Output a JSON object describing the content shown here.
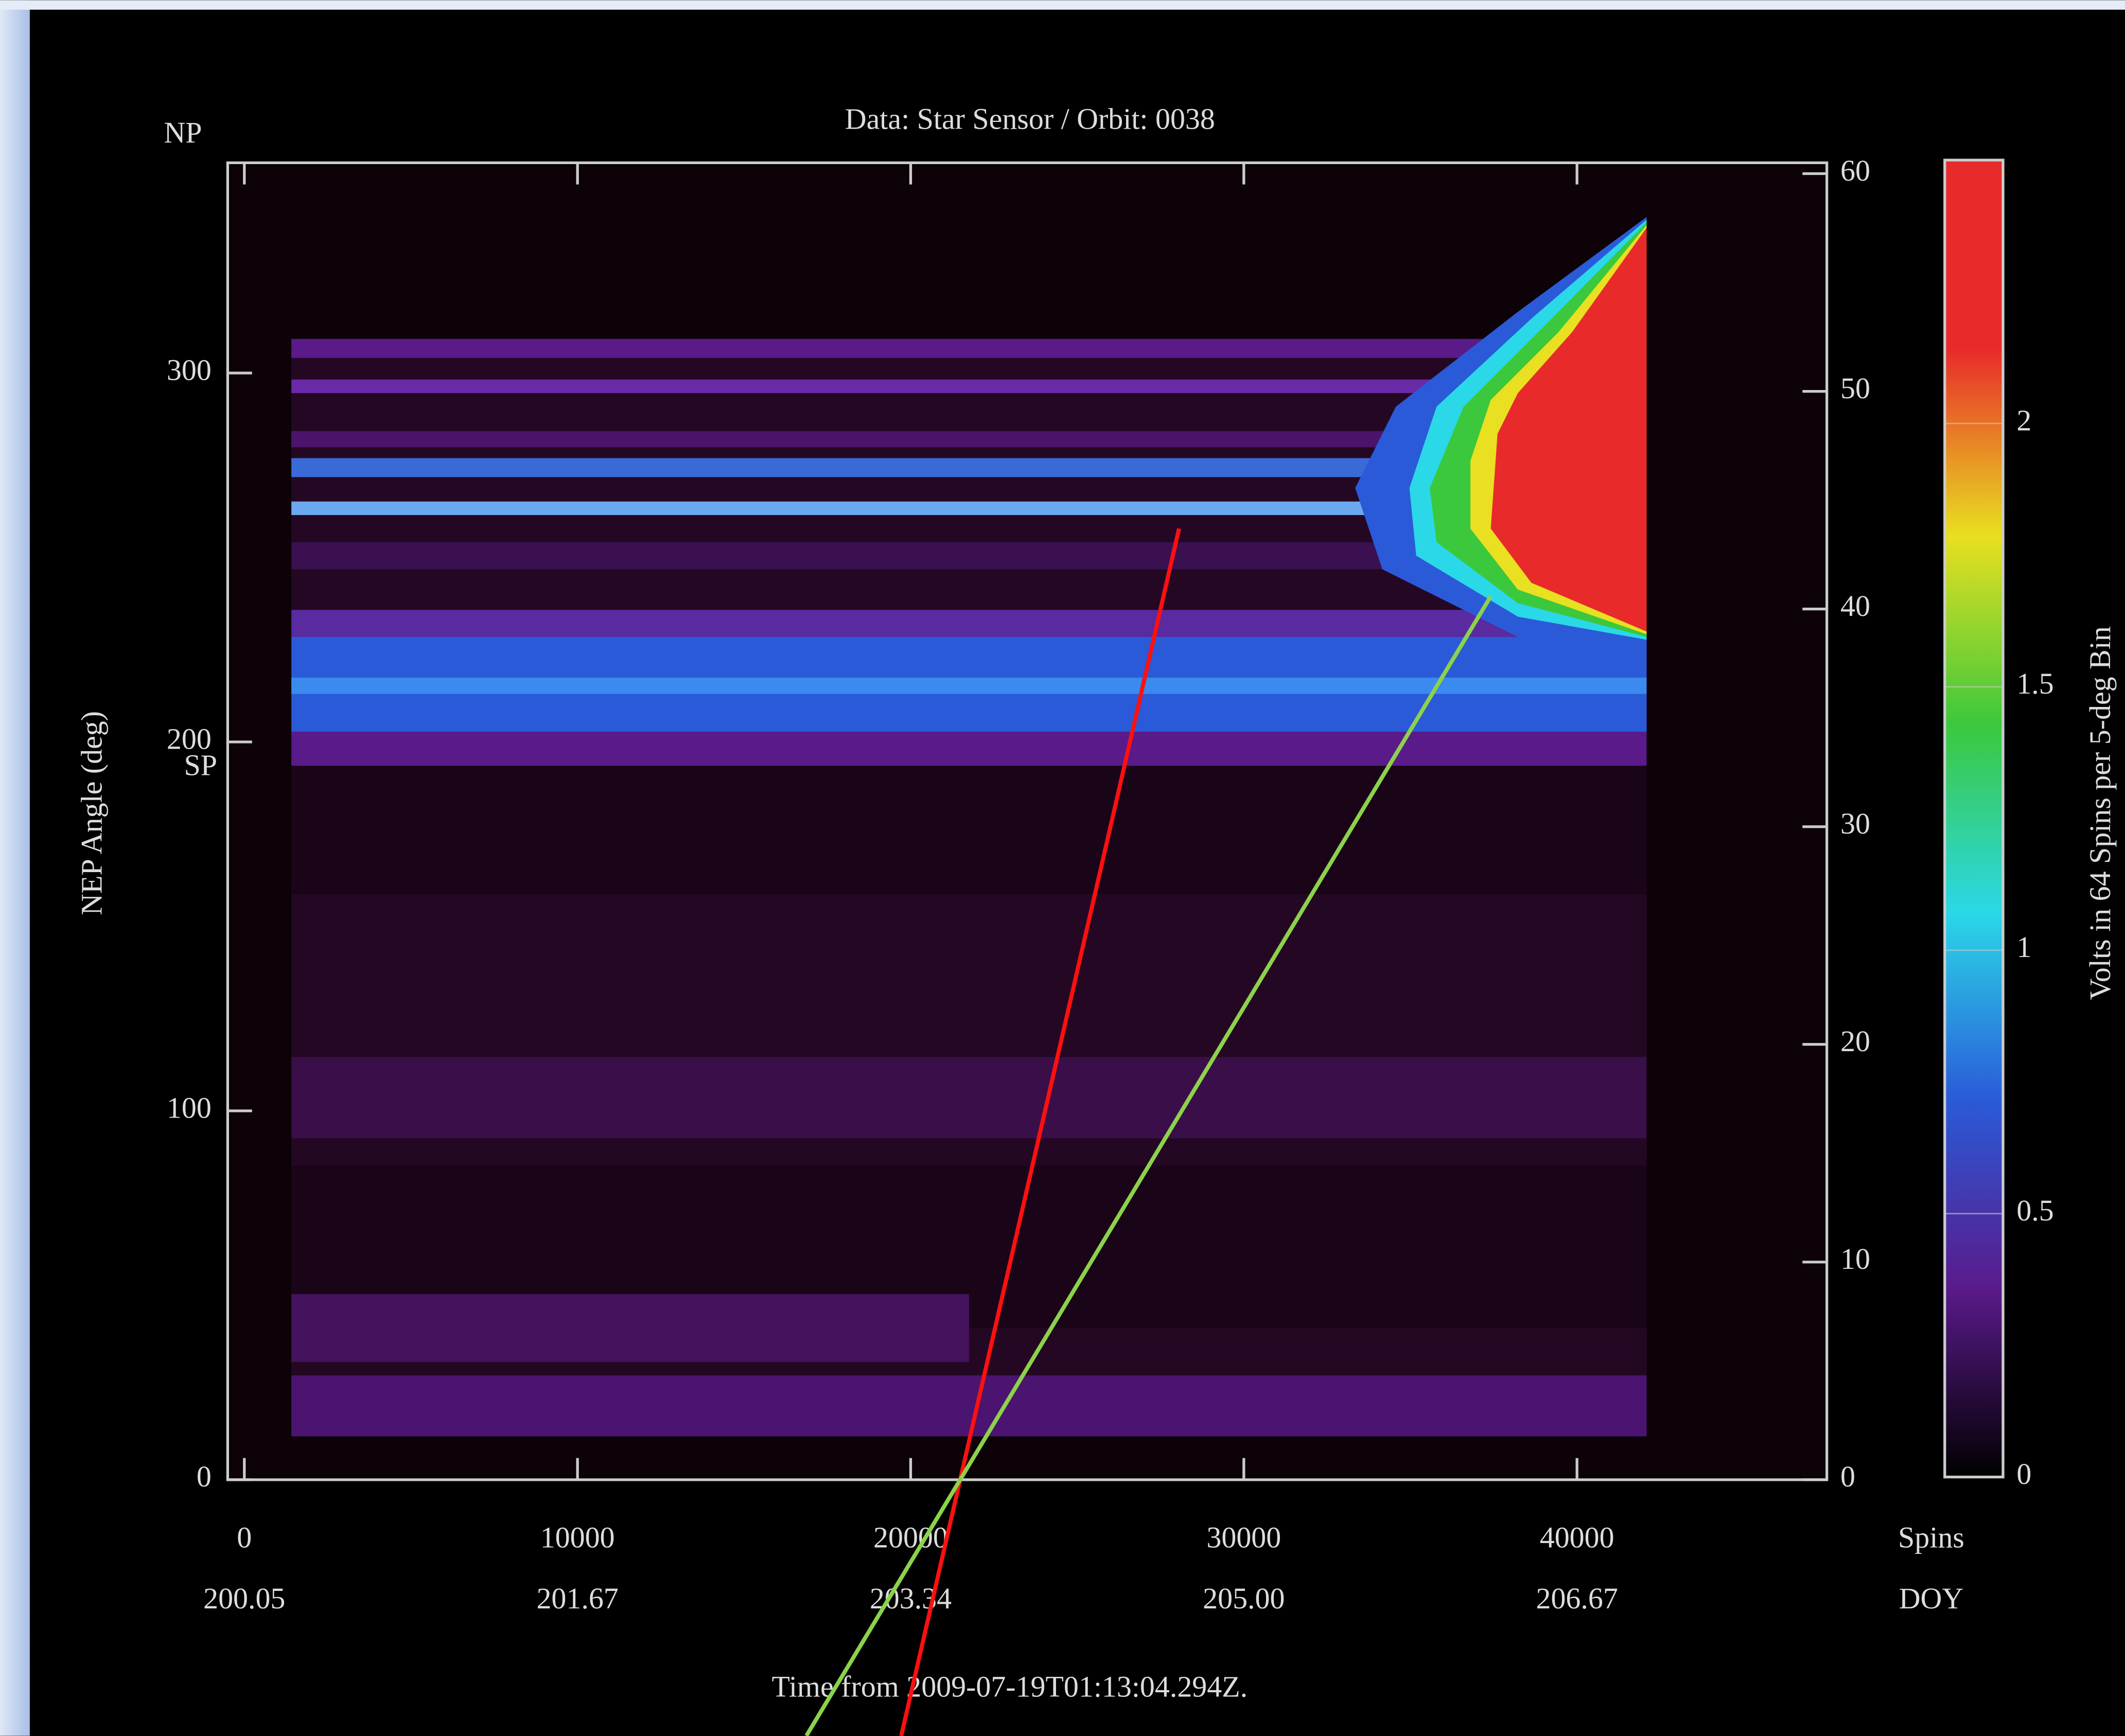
{
  "chart_data": {
    "type": "spectrogram",
    "title": "Data: Star Sensor / Orbit: 0038",
    "np_label": "NP",
    "sp_label": "SP",
    "ylabel": "NEP Angle (deg)",
    "xlabel": "Time from 2009-07-19T01:13:04.294Z.",
    "xlim": [
      -500,
      47500
    ],
    "xticks": [
      0,
      10000,
      20000,
      30000,
      40000
    ],
    "xticks2": [
      {
        "value": 0,
        "label": "200.05"
      },
      {
        "value": 10000,
        "label": "201.67"
      },
      {
        "value": 20000,
        "label": "203.34"
      },
      {
        "value": 30000,
        "label": "205.00"
      },
      {
        "value": 40000,
        "label": "206.67"
      }
    ],
    "xtick_unit": "Spins",
    "xtick2_unit": "DOY",
    "ylim": [
      0,
      357
    ],
    "yticks": [
      0,
      100,
      200,
      300
    ],
    "y2lim": [
      0,
      60.5
    ],
    "y2ticks": [
      0,
      10,
      20,
      30,
      40,
      50,
      60
    ],
    "colorbar": {
      "label": "Volts in 64 Spins per 5-deg Bin",
      "lim": [
        0,
        2.5
      ],
      "ticks": [
        0,
        0.5,
        1,
        1.5,
        2
      ],
      "colors": [
        "#000000",
        "#5a1a8a",
        "#2a5ad8",
        "#2ad8e8",
        "#3cc83c",
        "#e8e020",
        "#e82a2a",
        "#e82a2a"
      ]
    }
  }
}
